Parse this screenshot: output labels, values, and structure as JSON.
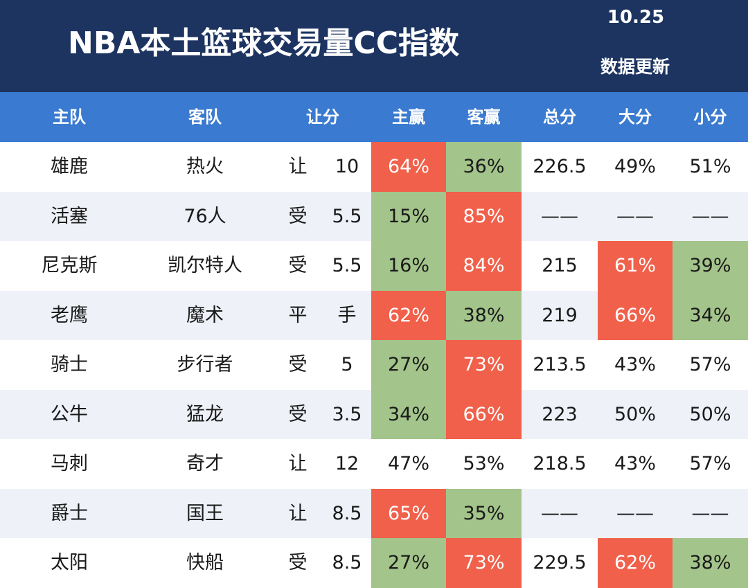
{
  "header": {
    "title": "NBA本土篮球交易量CC指数",
    "date": "10.25",
    "update_label": "数据更新"
  },
  "columns": [
    "主队",
    "客队",
    "让分",
    "主赢",
    "客赢",
    "总分",
    "大分",
    "小分"
  ],
  "colors": {
    "header_bg": "#1d3461",
    "column_header_bg": "#3a7ad0",
    "highlight_red": "#f0604a",
    "highlight_green": "#a3c48a",
    "alt_row": "#eef1f8"
  },
  "rows": [
    {
      "home": "雄鹿",
      "away": "热火",
      "hc_type": "让",
      "hc_value": "10",
      "home_win": "64%",
      "away_win": "36%",
      "total": "226.5",
      "over": "49%",
      "under": "51%",
      "hw_color": "red",
      "aw_color": "green",
      "over_color": "",
      "under_color": ""
    },
    {
      "home": "活塞",
      "away": "76人",
      "hc_type": "受",
      "hc_value": "5.5",
      "home_win": "15%",
      "away_win": "85%",
      "total": "——",
      "over": "——",
      "under": "——",
      "hw_color": "green",
      "aw_color": "red",
      "over_color": "",
      "under_color": ""
    },
    {
      "home": "尼克斯",
      "away": "凯尔特人",
      "hc_type": "受",
      "hc_value": "5.5",
      "home_win": "16%",
      "away_win": "84%",
      "total": "215",
      "over": "61%",
      "under": "39%",
      "hw_color": "green",
      "aw_color": "red",
      "over_color": "red",
      "under_color": "green"
    },
    {
      "home": "老鹰",
      "away": "魔术",
      "hc_type": "平",
      "hc_value": "手",
      "home_win": "62%",
      "away_win": "38%",
      "total": "219",
      "over": "66%",
      "under": "34%",
      "hw_color": "red",
      "aw_color": "green",
      "over_color": "red",
      "under_color": "green"
    },
    {
      "home": "骑士",
      "away": "步行者",
      "hc_type": "受",
      "hc_value": "5",
      "home_win": "27%",
      "away_win": "73%",
      "total": "213.5",
      "over": "43%",
      "under": "57%",
      "hw_color": "green",
      "aw_color": "red",
      "over_color": "",
      "under_color": ""
    },
    {
      "home": "公牛",
      "away": "猛龙",
      "hc_type": "受",
      "hc_value": "3.5",
      "home_win": "34%",
      "away_win": "66%",
      "total": "223",
      "over": "50%",
      "under": "50%",
      "hw_color": "green",
      "aw_color": "red",
      "over_color": "",
      "under_color": ""
    },
    {
      "home": "马刺",
      "away": "奇才",
      "hc_type": "让",
      "hc_value": "12",
      "home_win": "47%",
      "away_win": "53%",
      "total": "218.5",
      "over": "43%",
      "under": "57%",
      "hw_color": "",
      "aw_color": "",
      "over_color": "",
      "under_color": ""
    },
    {
      "home": "爵士",
      "away": "国王",
      "hc_type": "让",
      "hc_value": "8.5",
      "home_win": "65%",
      "away_win": "35%",
      "total": "——",
      "over": "——",
      "under": "——",
      "hw_color": "red",
      "aw_color": "green",
      "over_color": "",
      "under_color": ""
    },
    {
      "home": "太阳",
      "away": "快船",
      "hc_type": "受",
      "hc_value": "8.5",
      "home_win": "27%",
      "away_win": "73%",
      "total": "229.5",
      "over": "62%",
      "under": "38%",
      "hw_color": "green",
      "aw_color": "red",
      "over_color": "red",
      "under_color": "green"
    }
  ]
}
